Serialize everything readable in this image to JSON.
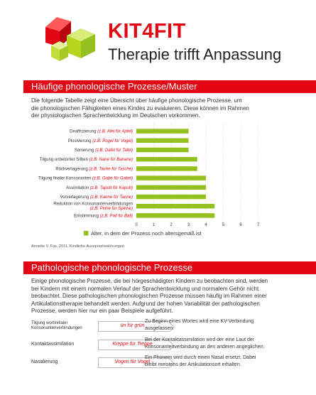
{
  "header": {
    "title": "KIT4FIT",
    "subtitle": "Therapie trifft Anpassung"
  },
  "section1": {
    "heading": "Häufige phonologische Prozesse/Muster",
    "intro_lines": [
      "Die folgende Tabelle zeigt eine Übersicht über häufige phonologische Prozesse, um",
      "die phonologischen Fähigkeiten eines Kindes zu evaluieren. Diese können im Rahmen",
      "der physiologischen Sprachentwicklung im Deutschen vorkommen."
    ],
    "source": "Annette V. Fox, 2011, Kindliche Aussprachestörungen"
  },
  "chart_data": {
    "type": "bar",
    "orientation": "horizontal",
    "categories": [
      {
        "name": "Deaffrizierung",
        "example": "(z.B. Afel für Apfel)"
      },
      {
        "name": "Plosivierung",
        "example": "(z.B. Pogel für Vogel)"
      },
      {
        "name": "Sonierung",
        "example": "(z.B. Dafel für Tafel)"
      },
      {
        "name": "Tilgung unbetonter Silben",
        "example": "(z.B. Nane für Banane)"
      },
      {
        "name": "Rückverlagerung",
        "example": "(z.B. Tache für Tasche)"
      },
      {
        "name": "Tilgung finaler Konsonanten",
        "example": "(z.B. Gabe für Gabel)"
      },
      {
        "name": "Assimilation",
        "example": "(z.B. Taputt für Kaputt)"
      },
      {
        "name": "Vorverlagerung",
        "example": "(z.B. Kanne für Tanne)"
      },
      {
        "name": "Reduktion von Konsonantenverbindungen",
        "example": "(z.B. Pinne für Spinne)"
      },
      {
        "name": "Entstimmung",
        "example": "(z.B. Pall für Ball)"
      }
    ],
    "series": [
      {
        "name": "Alter, in dem der Prozess noch altersgemäß ist",
        "values": [
          3.0,
          3.0,
          3.0,
          3.5,
          3.5,
          4.0,
          4.0,
          4.0,
          4.5,
          4.5
        ],
        "color": "#95c11f"
      }
    ],
    "xticks": [
      "0",
      "1",
      "2",
      "3",
      "4",
      "5",
      "6",
      "7"
    ],
    "xlim": [
      0,
      7
    ],
    "grid": true,
    "legend_position": "bottom"
  },
  "section2": {
    "heading": "Pathologische phonologische Prozesse",
    "intro_lines": [
      "Einige phonologische Prozesse, die bei hörgeschädigten Kindern zu beobachten sind, werden",
      "bei Kindern mit einem normalen Verlauf der Sprachentwicklung und normalem Gehör nicht",
      "beobachtet. Diese pathologischen phonologischen Prozesse müssen häufig im Rahmen einer",
      "Artikulationstherapie behandelt werden. Aufgrund der hohen Variabilität der pathologischen",
      "Prozesse, werden hier nur ein paar Beispiele aufgeführt."
    ],
    "processes": [
      {
        "name_lines": [
          "Tilgung wortinitialer",
          "Konsonantenverbindungen"
        ],
        "example": "ün für grün",
        "desc_lines": [
          "Zu Beginn eines Wortes wird eine KV-Verbindung",
          "ausgelassen."
        ]
      },
      {
        "name_lines": [
          "Kontaktassimilation"
        ],
        "example": "Kreppe für Treppe",
        "desc_lines": [
          "Bei der Kontaktassimilation wird der eine Laut der",
          "Konsonantenverbindung an den anderen angeglichen."
        ]
      },
      {
        "name_lines": [
          "Nasalierung"
        ],
        "example": "Vogen für Vogel",
        "desc_lines": [
          "Ein Phonem wird durch einen Nasal ersetzt. Dabei",
          "bleibt meistens der Artikulationsort erhalten."
        ]
      }
    ]
  },
  "colors": {
    "accent": "#e30613",
    "bar": "#95c11f"
  }
}
